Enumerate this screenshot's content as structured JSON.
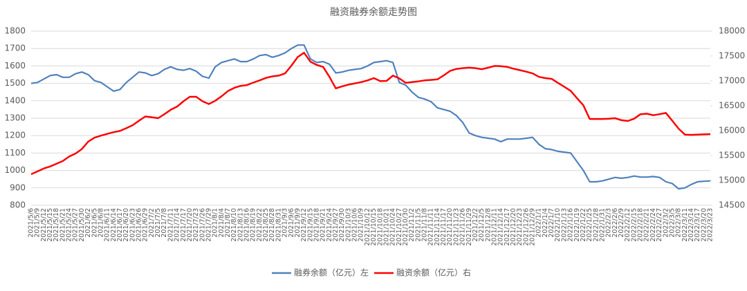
{
  "chart_data": {
    "type": "line",
    "title": "融资融券余额走势图",
    "categories": [
      "2021/5/6",
      "2021/5/9",
      "2021/5/12",
      "2021/5/15",
      "2021/5/18",
      "2021/5/21",
      "2021/5/24",
      "2021/5/27",
      "2021/5/30",
      "2021/6/2",
      "2021/6/5",
      "2021/6/8",
      "2021/6/11",
      "2021/6/14",
      "2021/6/17",
      "2021/6/20",
      "2021/6/23",
      "2021/6/26",
      "2021/6/29",
      "2021/7/2",
      "2021/7/5",
      "2021/7/8",
      "2021/7/11",
      "2021/7/14",
      "2021/7/17",
      "2021/7/20",
      "2021/7/23",
      "2021/7/26",
      "2021/7/29",
      "2021/8/1",
      "2021/8/4",
      "2021/8/7",
      "2021/8/10",
      "2021/8/13",
      "2021/8/16",
      "2021/8/19",
      "2021/8/22",
      "2021/8/25",
      "2021/8/28",
      "2021/8/31",
      "2021/9/3",
      "2021/9/6",
      "2021/9/9",
      "2021/9/12",
      "2021/9/15",
      "2021/9/18",
      "2021/9/21",
      "2021/9/24",
      "2021/9/27",
      "2021/9/30",
      "2021/10/3",
      "2021/10/6",
      "2021/10/9",
      "2021/10/12",
      "2021/10/15",
      "2021/10/18",
      "2021/10/21",
      "2021/10/24",
      "2021/10/27",
      "2021/10/30",
      "2021/11/2",
      "2021/11/5",
      "2021/11/8",
      "2021/11/11",
      "2021/11/14",
      "2021/11/17",
      "2021/11/20",
      "2021/11/23",
      "2021/11/26",
      "2021/11/29",
      "2021/12/2",
      "2021/12/5",
      "2021/12/8",
      "2021/12/11",
      "2021/12/14",
      "2021/12/17",
      "2021/12/20",
      "2021/12/23",
      "2021/12/26",
      "2021/12/29",
      "2022/1/1",
      "2022/1/4",
      "2022/1/7",
      "2022/1/10",
      "2022/1/13",
      "2022/1/16",
      "2022/1/19",
      "2022/1/22",
      "2022/1/25",
      "2022/1/28",
      "2022/1/31",
      "2022/2/3",
      "2022/2/6",
      "2022/2/9",
      "2022/2/12",
      "2022/2/15",
      "2022/2/18",
      "2022/2/21",
      "2022/2/24",
      "2022/2/27",
      "2022/3/2",
      "2022/3/5",
      "2022/3/8",
      "2022/3/11",
      "2022/3/14",
      "2022/3/17",
      "2022/3/20",
      "2022/3/23"
    ],
    "series": [
      {
        "name": "融券余额（亿元）左",
        "color": "#4f81bd",
        "axis": "y",
        "values": [
          1500,
          1505,
          1525,
          1545,
          1550,
          1535,
          1535,
          1555,
          1565,
          1550,
          1515,
          1505,
          1480,
          1455,
          1465,
          1505,
          1535,
          1565,
          1560,
          1545,
          1555,
          1580,
          1595,
          1580,
          1575,
          1585,
          1570,
          1540,
          1530,
          1595,
          1620,
          1630,
          1640,
          1625,
          1625,
          1640,
          1660,
          1665,
          1650,
          1660,
          1675,
          1700,
          1720,
          1720,
          1640,
          1620,
          1625,
          1610,
          1560,
          1565,
          1575,
          1580,
          1585,
          1600,
          1620,
          1625,
          1630,
          1620,
          1505,
          1490,
          1450,
          1420,
          1410,
          1395,
          1360,
          1350,
          1340,
          1315,
          1275,
          1215,
          1200,
          1190,
          1185,
          1180,
          1165,
          1180,
          1180,
          1180,
          1185,
          1190,
          1150,
          1125,
          1120,
          1110,
          1105,
          1100,
          1050,
          1000,
          935,
          935,
          940,
          950,
          960,
          955,
          960,
          968,
          962,
          962,
          965,
          960,
          935,
          925,
          895,
          900,
          920,
          935,
          938,
          940
        ]
      },
      {
        "name": "融资余额（亿元）右",
        "color": "#ff0000",
        "axis": "y2",
        "values": [
          15125,
          15180,
          15240,
          15280,
          15335,
          15390,
          15480,
          15540,
          15630,
          15780,
          15860,
          15900,
          15935,
          15970,
          15995,
          16050,
          16110,
          16200,
          16285,
          16270,
          16250,
          16330,
          16420,
          16485,
          16590,
          16680,
          16680,
          16590,
          16535,
          16600,
          16690,
          16795,
          16860,
          16900,
          16915,
          16965,
          17010,
          17060,
          17090,
          17105,
          17150,
          17305,
          17480,
          17565,
          17385,
          17320,
          17280,
          17080,
          16850,
          16890,
          16925,
          16950,
          16975,
          17010,
          17055,
          16995,
          17000,
          17105,
          17050,
          16960,
          16975,
          16990,
          17010,
          17020,
          17030,
          17110,
          17200,
          17240,
          17255,
          17265,
          17255,
          17235,
          17265,
          17300,
          17295,
          17280,
          17245,
          17215,
          17185,
          17150,
          17080,
          17055,
          17040,
          16960,
          16880,
          16800,
          16650,
          16510,
          16235,
          16235,
          16235,
          16240,
          16250,
          16210,
          16195,
          16240,
          16330,
          16340,
          16310,
          16330,
          16355,
          16200,
          16040,
          15920,
          15915,
          15920,
          15925,
          15930
        ]
      }
    ],
    "ylim": [
      800,
      1800
    ],
    "yticks": [
      800,
      900,
      1000,
      1100,
      1200,
      1300,
      1400,
      1500,
      1600,
      1700,
      1800
    ],
    "y2lim": [
      14500,
      18000
    ],
    "y2ticks": [
      14500,
      15000,
      15500,
      16000,
      16500,
      17000,
      17500,
      18000
    ],
    "grid": true
  }
}
